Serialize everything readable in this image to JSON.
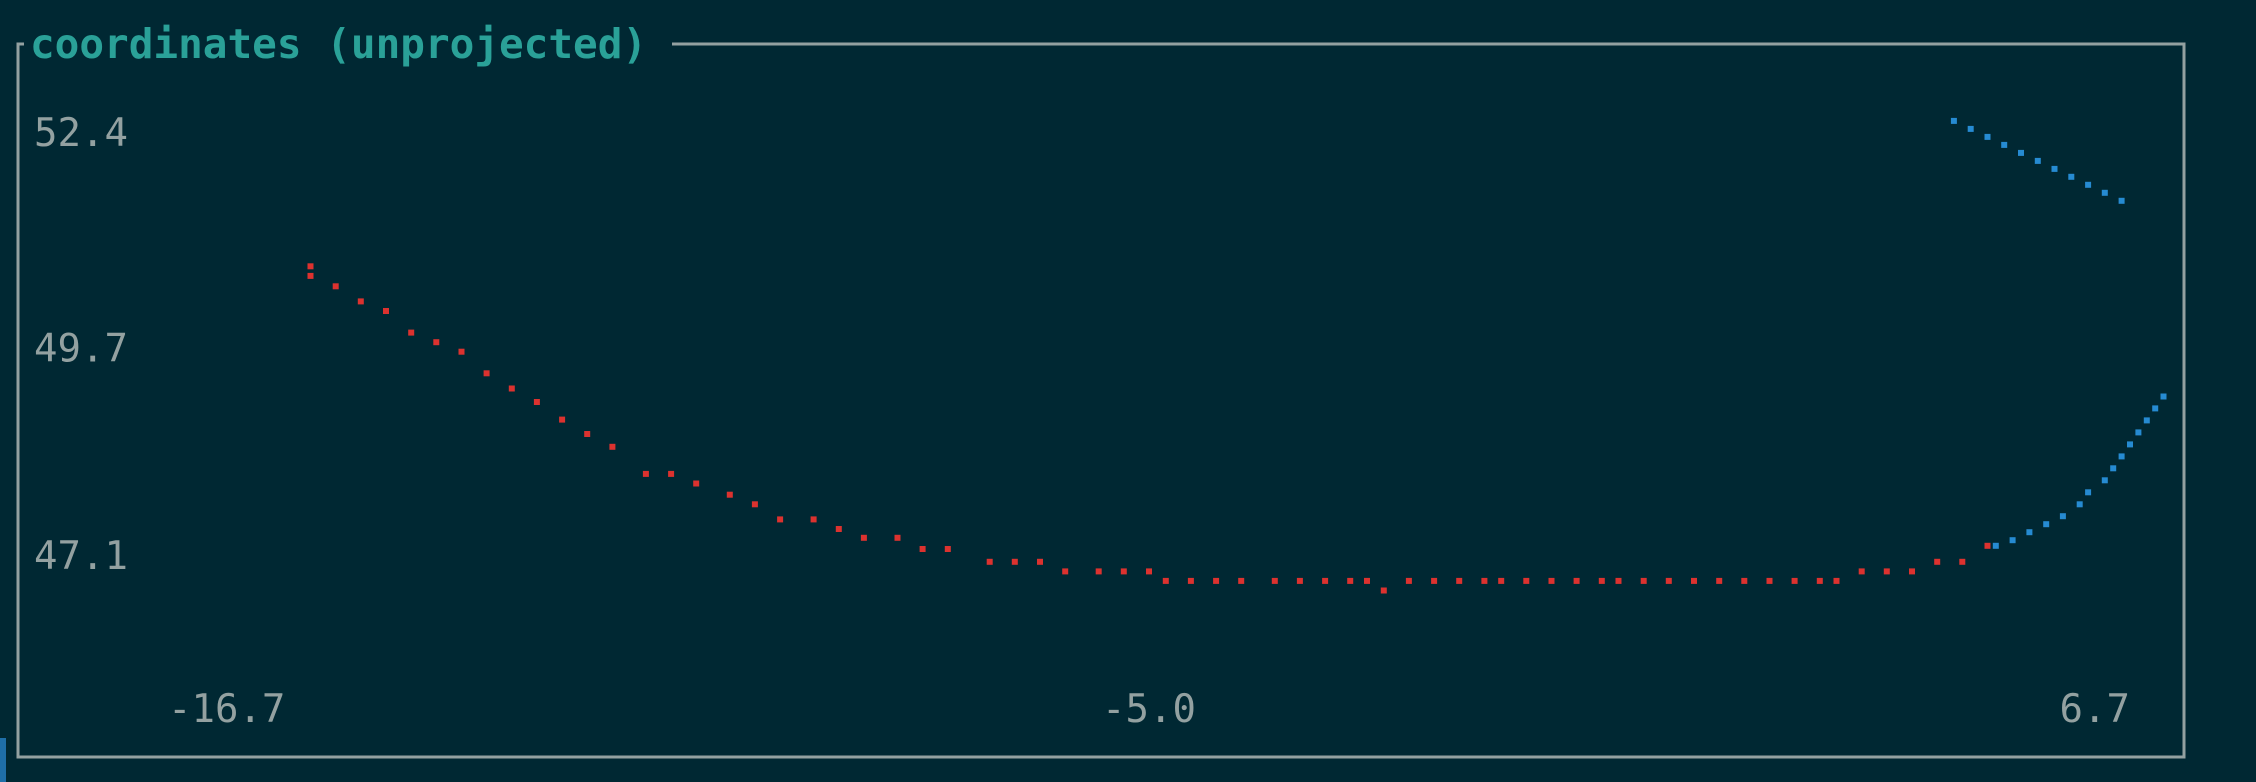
{
  "panel": {
    "title": "coordinates (unprojected)"
  },
  "colors": {
    "background": "#002833",
    "border": "#93a1a1",
    "title": "#2aa198",
    "tick_text": "#93a1a1",
    "series_red": "#dc322f",
    "series_blue": "#268bd2"
  },
  "chart_data": {
    "type": "scatter",
    "title": "coordinates (unprojected)",
    "xlabel": "",
    "ylabel": "",
    "xlim": [
      -16.7,
      6.7
    ],
    "ylim": [
      45.8,
      53.0
    ],
    "x_ticks": [
      "-16.7",
      "-5.0",
      "6.7"
    ],
    "y_ticks": [
      "52.4",
      "49.7",
      "47.1"
    ],
    "grid": false,
    "legend": "none",
    "series": [
      {
        "color": "#dc322f",
        "points": [
          [
            -15.0,
            50.73
          ],
          [
            -15.0,
            50.61
          ],
          [
            -14.7,
            50.48
          ],
          [
            -14.4,
            50.29
          ],
          [
            -14.1,
            50.17
          ],
          [
            -13.8,
            49.9
          ],
          [
            -13.5,
            49.78
          ],
          [
            -13.2,
            49.66
          ],
          [
            -12.9,
            49.39
          ],
          [
            -12.6,
            49.2
          ],
          [
            -12.3,
            49.03
          ],
          [
            -12.0,
            48.81
          ],
          [
            -11.7,
            48.63
          ],
          [
            -11.4,
            48.47
          ],
          [
            -11.0,
            48.13
          ],
          [
            -10.7,
            48.13
          ],
          [
            -10.4,
            48.01
          ],
          [
            -10.0,
            47.87
          ],
          [
            -9.7,
            47.75
          ],
          [
            -9.4,
            47.56
          ],
          [
            -9.0,
            47.56
          ],
          [
            -8.7,
            47.44
          ],
          [
            -8.4,
            47.33
          ],
          [
            -8.0,
            47.33
          ],
          [
            -7.7,
            47.19
          ],
          [
            -7.4,
            47.19
          ],
          [
            -6.9,
            47.03
          ],
          [
            -6.6,
            47.03
          ],
          [
            -6.3,
            47.03
          ],
          [
            -6.0,
            46.91
          ],
          [
            -5.6,
            46.91
          ],
          [
            -5.3,
            46.91
          ],
          [
            -5.0,
            46.91
          ],
          [
            -4.8,
            46.79
          ],
          [
            -4.5,
            46.79
          ],
          [
            -4.2,
            46.79
          ],
          [
            -3.9,
            46.79
          ],
          [
            -3.5,
            46.79
          ],
          [
            -3.2,
            46.79
          ],
          [
            -2.9,
            46.79
          ],
          [
            -2.6,
            46.79
          ],
          [
            -2.4,
            46.79
          ],
          [
            -2.2,
            46.67
          ],
          [
            -1.9,
            46.79
          ],
          [
            -1.6,
            46.79
          ],
          [
            -1.3,
            46.79
          ],
          [
            -1.0,
            46.79
          ],
          [
            -0.8,
            46.79
          ],
          [
            -0.5,
            46.79
          ],
          [
            -0.2,
            46.79
          ],
          [
            0.1,
            46.79
          ],
          [
            0.4,
            46.79
          ],
          [
            0.6,
            46.79
          ],
          [
            0.9,
            46.79
          ],
          [
            1.2,
            46.79
          ],
          [
            1.5,
            46.79
          ],
          [
            1.8,
            46.79
          ],
          [
            2.1,
            46.79
          ],
          [
            2.4,
            46.79
          ],
          [
            2.7,
            46.79
          ],
          [
            3.0,
            46.79
          ],
          [
            3.2,
            46.79
          ],
          [
            3.5,
            46.91
          ],
          [
            3.8,
            46.91
          ],
          [
            4.1,
            46.91
          ],
          [
            4.4,
            47.03
          ],
          [
            4.7,
            47.03
          ],
          [
            5.0,
            47.23
          ]
        ]
      },
      {
        "color": "#268bd2",
        "points": [
          [
            4.6,
            52.55
          ],
          [
            4.8,
            52.45
          ],
          [
            5.0,
            52.35
          ],
          [
            5.2,
            52.25
          ],
          [
            5.4,
            52.15
          ],
          [
            5.6,
            52.05
          ],
          [
            5.8,
            51.95
          ],
          [
            6.0,
            51.85
          ],
          [
            6.2,
            51.75
          ],
          [
            6.4,
            51.65
          ],
          [
            6.6,
            51.55
          ],
          [
            5.1,
            47.23
          ],
          [
            5.3,
            47.3
          ],
          [
            5.5,
            47.4
          ],
          [
            5.7,
            47.5
          ],
          [
            5.9,
            47.6
          ],
          [
            6.1,
            47.75
          ],
          [
            6.2,
            47.9
          ],
          [
            6.4,
            48.05
          ],
          [
            6.5,
            48.2
          ],
          [
            6.6,
            48.35
          ],
          [
            6.7,
            48.5
          ],
          [
            6.8,
            48.65
          ],
          [
            6.9,
            48.8
          ],
          [
            7.0,
            48.95
          ],
          [
            7.1,
            49.1
          ]
        ]
      }
    ]
  }
}
